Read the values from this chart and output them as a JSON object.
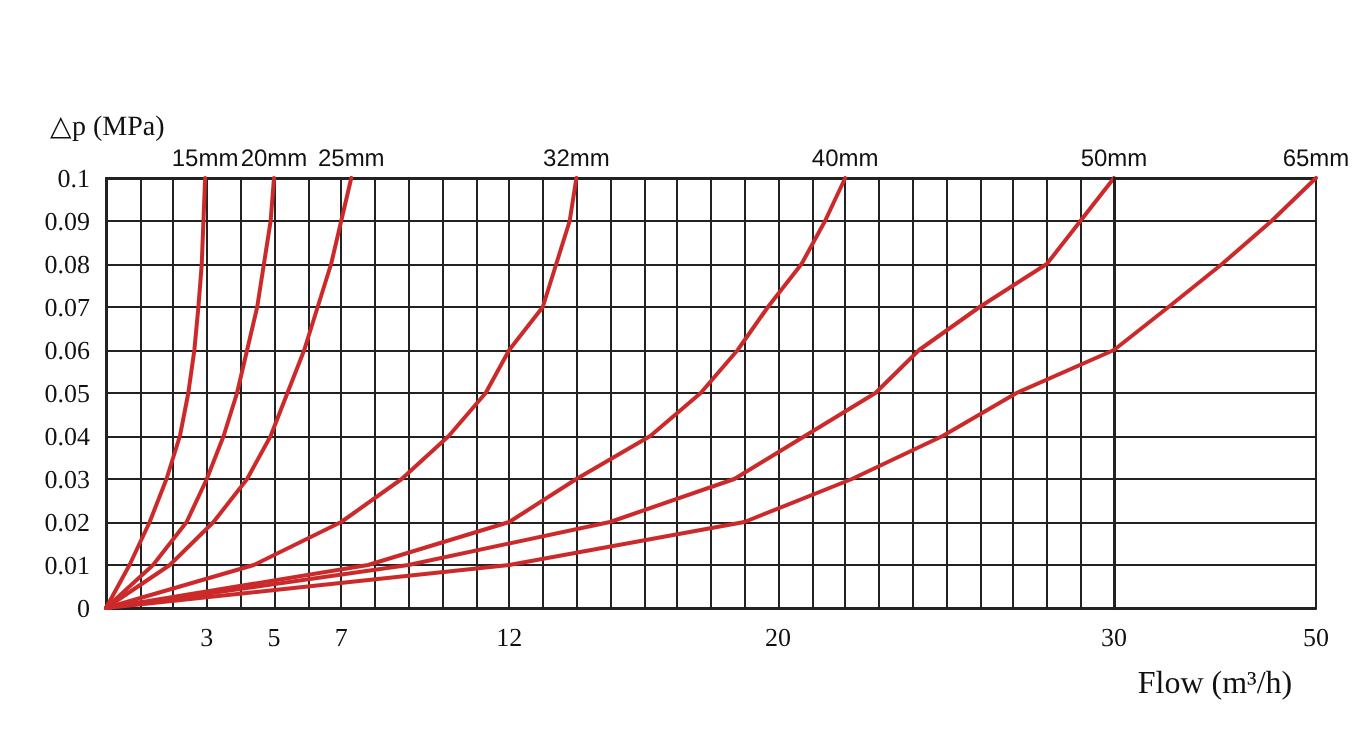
{
  "chart_data": [
    {
      "type": "line",
      "ylabel": "△p (MPa)",
      "xlim": [
        0,
        30
      ],
      "ylim": [
        0,
        0.1
      ],
      "xticks": [
        {
          "value": 0,
          "label": null
        },
        {
          "value": 1,
          "label": null
        },
        {
          "value": 2,
          "label": null
        },
        3,
        {
          "value": 4,
          "label": null
        },
        5,
        {
          "value": 6,
          "label": null
        },
        7,
        {
          "value": 8,
          "label": null
        },
        {
          "value": 9,
          "label": null
        },
        {
          "value": 10,
          "label": null
        },
        {
          "value": 11,
          "label": null
        },
        12,
        {
          "value": 13,
          "label": null
        },
        {
          "value": 14,
          "label": null
        },
        {
          "value": 15,
          "label": null
        },
        {
          "value": 16,
          "label": null
        },
        {
          "value": 17,
          "label": null
        },
        {
          "value": 18,
          "label": null
        },
        {
          "value": 19,
          "label": null
        },
        20,
        {
          "value": 21,
          "label": null
        },
        {
          "value": 22,
          "label": null
        },
        {
          "value": 23,
          "label": null
        },
        {
          "value": 24,
          "label": null
        },
        {
          "value": 25,
          "label": null
        },
        {
          "value": 26,
          "label": null
        },
        {
          "value": 27,
          "label": null
        },
        {
          "value": 28,
          "label": null
        },
        {
          "value": 29,
          "label": null
        },
        {
          "value": 30,
          "label": null
        }
      ],
      "yticks": [
        0,
        0.01,
        0.02,
        0.03,
        0.04,
        0.05,
        0.06,
        0.07,
        0.08,
        0.09,
        0.1
      ],
      "grid": true,
      "legend": false,
      "marker": "none",
      "line_style": "solid",
      "series": [
        {
          "name": "15mm",
          "color": "#cc2a2a",
          "x": [
            0,
            0.7,
            1.3,
            1.8,
            2.2,
            2.45,
            2.63,
            2.75,
            2.85,
            2.9,
            2.95
          ],
          "values": [
            0,
            0.01,
            0.02,
            0.03,
            0.04,
            0.05,
            0.06,
            0.07,
            0.08,
            0.09,
            0.1
          ]
        },
        {
          "name": "20mm",
          "color": "#cc2a2a",
          "x": [
            0,
            1.4,
            2.4,
            3.0,
            3.5,
            3.9,
            4.2,
            4.5,
            4.7,
            4.9,
            5.0
          ],
          "values": [
            0,
            0.01,
            0.02,
            0.03,
            0.04,
            0.05,
            0.06,
            0.07,
            0.08,
            0.09,
            0.1
          ]
        },
        {
          "name": "25mm",
          "color": "#cc2a2a",
          "x": [
            0,
            1.9,
            3.2,
            4.2,
            4.9,
            5.4,
            5.9,
            6.3,
            6.7,
            7.0,
            7.3
          ],
          "values": [
            0,
            0.01,
            0.02,
            0.03,
            0.04,
            0.05,
            0.06,
            0.07,
            0.08,
            0.09,
            0.1
          ]
        },
        {
          "name": "32mm",
          "color": "#cc2a2a",
          "x": [
            0,
            4.4,
            7.0,
            8.8,
            10.2,
            11.3,
            12.0,
            13.0,
            13.4,
            13.8,
            14.0
          ],
          "values": [
            0,
            0.01,
            0.02,
            0.03,
            0.04,
            0.05,
            0.06,
            0.07,
            0.08,
            0.09,
            0.1
          ]
        },
        {
          "name": "40mm",
          "color": "#cc2a2a",
          "x": [
            0,
            7.8,
            12,
            14,
            16.2,
            17.7,
            18.8,
            19.7,
            20.7,
            21.4,
            22.0
          ],
          "values": [
            0,
            0.01,
            0.02,
            0.03,
            0.04,
            0.05,
            0.06,
            0.07,
            0.08,
            0.09,
            0.1
          ]
        },
        {
          "name": "50mm",
          "color": "#cc2a2a",
          "x": [
            0,
            9,
            15,
            18.7,
            20.8,
            22.9,
            24.2,
            26.0,
            28.0,
            29.0,
            30
          ],
          "values": [
            0,
            0.01,
            0.02,
            0.03,
            0.04,
            0.05,
            0.06,
            0.07,
            0.08,
            0.09,
            0.1
          ]
        },
        {
          "color": "#cc2a2a",
          "x": [
            0,
            6,
            12,
            19.0,
            22.2,
            24.9,
            27.1,
            30
          ],
          "values": [
            0,
            0.005,
            0.01,
            0.02,
            0.03,
            0.04,
            0.05,
            0.06
          ]
        }
      ]
    },
    {
      "type": "line",
      "xlabel": "Flow (m³/h)",
      "xlim": [
        30,
        50
      ],
      "ylim": [
        0,
        0.1
      ],
      "xticks": [
        30,
        50
      ],
      "yticks": [
        0,
        0.01,
        0.02,
        0.03,
        0.04,
        0.05,
        0.06,
        0.07,
        0.08,
        0.09,
        0.1
      ],
      "tick_labels": "x",
      "grid": "y",
      "legend": false,
      "marker": "none",
      "line_style": "solid",
      "series": [
        {
          "name": "65mm",
          "color": "#cc2a2a",
          "x": [
            30,
            35.4,
            40.7,
            45.6,
            50
          ],
          "values": [
            0.06,
            0.07,
            0.08,
            0.09,
            0.1
          ]
        }
      ]
    }
  ]
}
